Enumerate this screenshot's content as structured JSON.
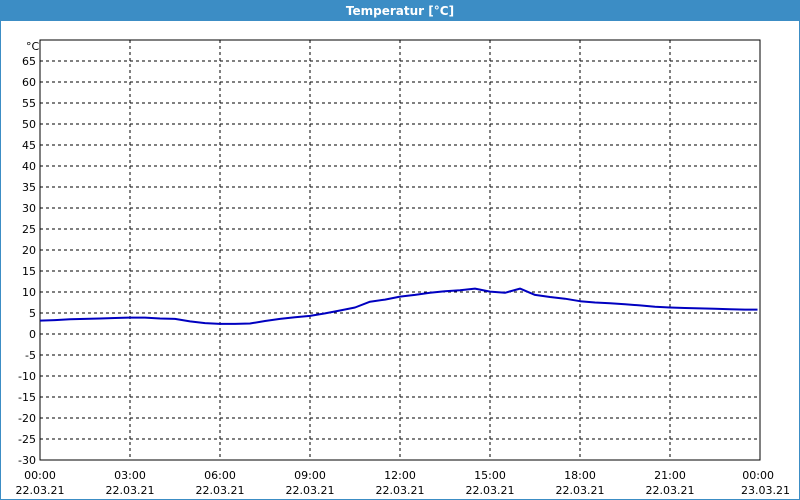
{
  "window": {
    "title": "Temperatur [°C]"
  },
  "colors": {
    "titlebar": "#3c8dc5",
    "series": "#0000c0",
    "grid": "#000000"
  },
  "chart_data": {
    "type": "line",
    "ylabel": "°C",
    "ylim": [
      -30,
      70
    ],
    "grid": true,
    "yticks": [
      "65",
      "60",
      "55",
      "50",
      "45",
      "40",
      "35",
      "30",
      "25",
      "20",
      "15",
      "10",
      "5",
      "0",
      "-5",
      "-10",
      "-15",
      "-20",
      "-25",
      "-30"
    ],
    "xticks": [
      {
        "time": "00:00",
        "date": "22.03.21"
      },
      {
        "time": "03:00",
        "date": "22.03.21"
      },
      {
        "time": "06:00",
        "date": "22.03.21"
      },
      {
        "time": "09:00",
        "date": "22.03.21"
      },
      {
        "time": "12:00",
        "date": "22.03.21"
      },
      {
        "time": "15:00",
        "date": "22.03.21"
      },
      {
        "time": "18:00",
        "date": "22.03.21"
      },
      {
        "time": "21:00",
        "date": "22.03.21"
      },
      {
        "time": "00:00",
        "date": "23.03.21"
      }
    ],
    "series": [
      {
        "x": [
          "00:00",
          "00:30",
          "01:00",
          "01:30",
          "02:00",
          "02:30",
          "03:00",
          "03:30",
          "04:00",
          "04:30",
          "05:00",
          "05:30",
          "06:00",
          "06:30",
          "07:00",
          "07:30",
          "08:00",
          "08:30",
          "09:00",
          "09:30",
          "10:00",
          "10:30",
          "11:00",
          "11:30",
          "12:00",
          "12:30",
          "13:00",
          "13:30",
          "14:00",
          "14:30",
          "15:00",
          "15:30",
          "16:00",
          "16:30",
          "17:00",
          "17:30",
          "18:00",
          "18:30",
          "19:00",
          "19:30",
          "20:00",
          "20:30",
          "21:00",
          "21:30",
          "22:00",
          "22:30",
          "23:00",
          "23:30",
          "23:55"
        ],
        "values": [
          3.2,
          3.3,
          3.5,
          3.6,
          3.7,
          3.8,
          3.9,
          3.9,
          3.7,
          3.6,
          3.0,
          2.6,
          2.4,
          2.4,
          2.5,
          3.1,
          3.6,
          4.0,
          4.3,
          4.9,
          5.6,
          6.3,
          7.7,
          8.2,
          8.9,
          9.3,
          9.8,
          10.2,
          10.4,
          10.8,
          10.1,
          9.8,
          10.8,
          9.3,
          8.8,
          8.4,
          7.8,
          7.5,
          7.3,
          7.1,
          6.8,
          6.5,
          6.3,
          6.2,
          6.1,
          6.0,
          5.9,
          5.8,
          5.8
        ]
      }
    ]
  }
}
